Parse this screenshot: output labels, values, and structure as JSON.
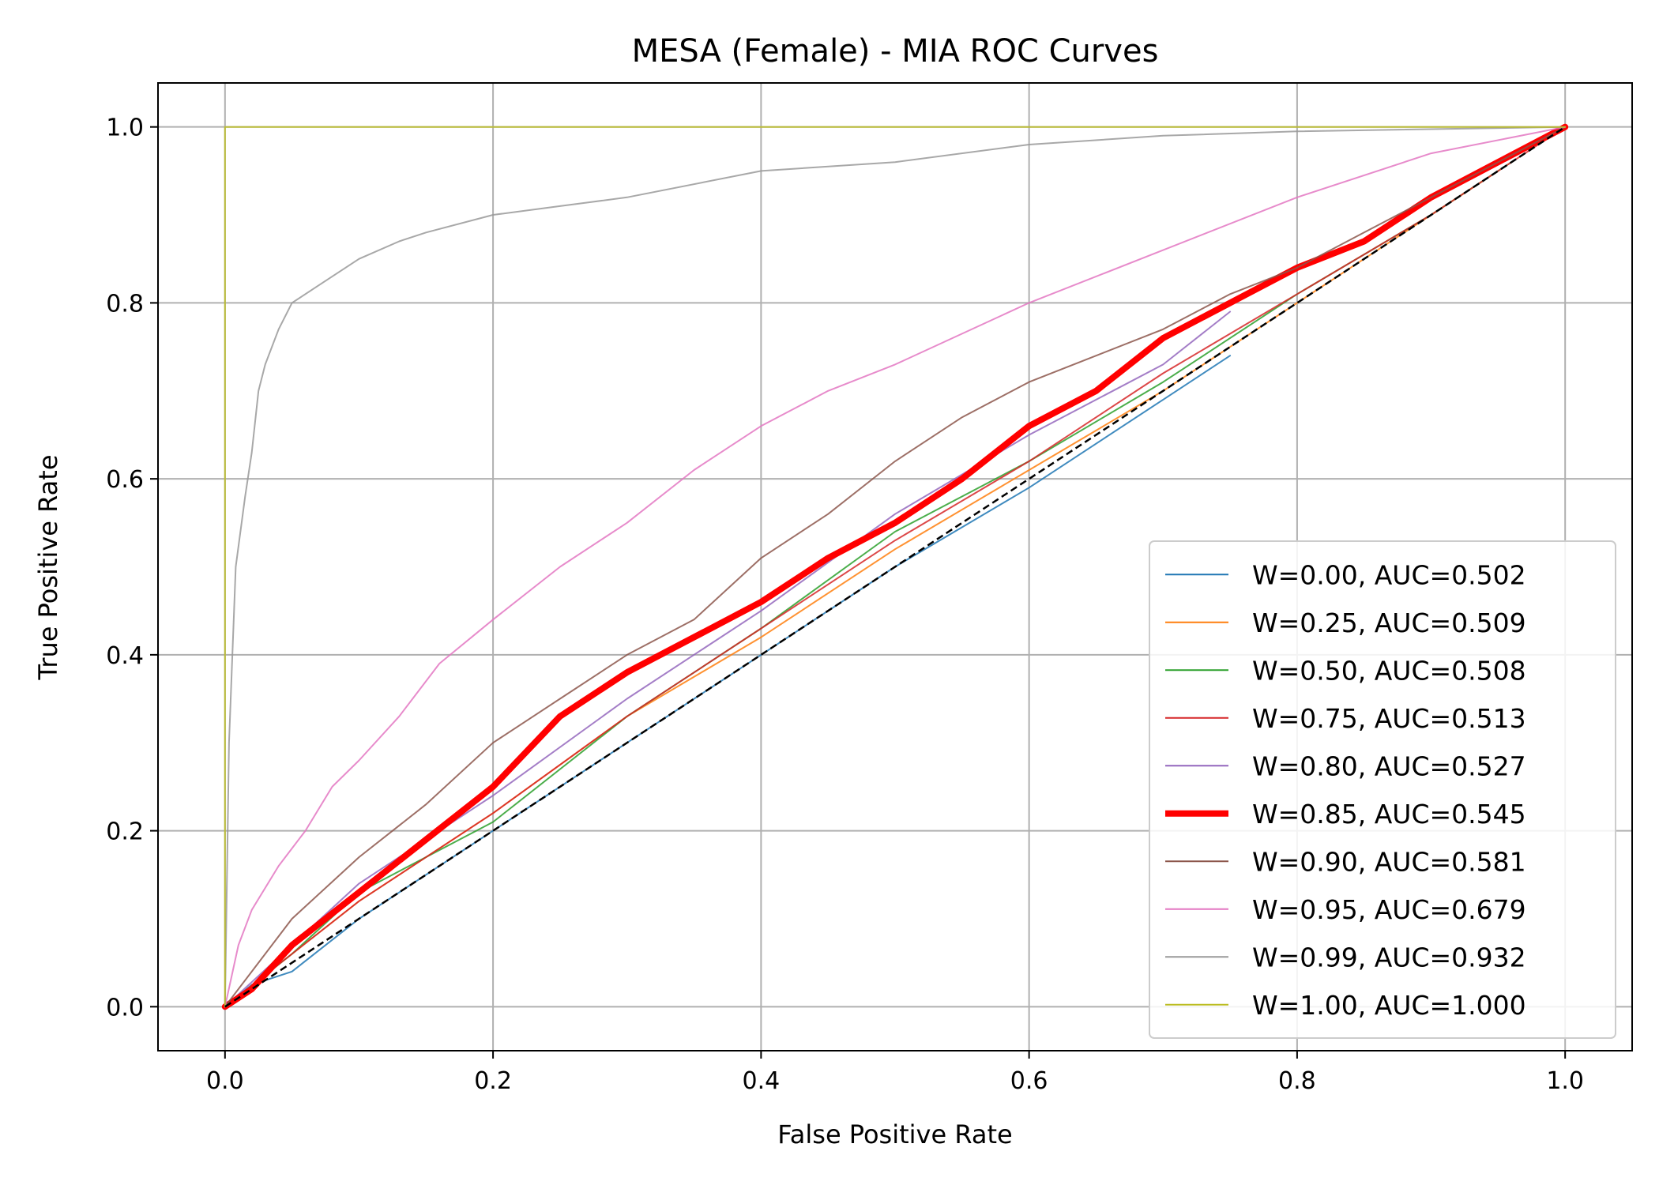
{
  "chart_data": {
    "type": "line",
    "title": "MESA (Female) - MIA ROC Curves",
    "xlabel": "False Positive Rate",
    "ylabel": "True Positive Rate",
    "xlim": [
      -0.05,
      1.05
    ],
    "ylim": [
      -0.05,
      1.05
    ],
    "xticks": [
      "0.0",
      "0.2",
      "0.4",
      "0.6",
      "0.8",
      "1.0"
    ],
    "yticks": [
      "0.0",
      "0.2",
      "0.4",
      "0.6",
      "0.8",
      "1.0"
    ],
    "grid": true,
    "legend_position": "lower-right",
    "series": [
      {
        "name": "W=0.00, AUC=0.502",
        "color": "#1f77b4",
        "highlight": false,
        "x": [
          0,
          0.02,
          0.05,
          0.1,
          0.2,
          0.3,
          0.4,
          0.5,
          0.6,
          0.7,
          0.75
        ],
        "y": [
          0,
          0.025,
          0.04,
          0.1,
          0.2,
          0.3,
          0.4,
          0.5,
          0.59,
          0.69,
          0.74
        ]
      },
      {
        "name": "W=0.25, AUC=0.509",
        "color": "#ff7f0e",
        "highlight": false,
        "x": [
          0,
          0.05,
          0.1,
          0.2,
          0.3,
          0.4,
          0.5,
          0.6,
          0.7,
          0.8,
          0.9,
          0.95
        ],
        "y": [
          0,
          0.06,
          0.12,
          0.22,
          0.33,
          0.42,
          0.52,
          0.61,
          0.7,
          0.8,
          0.9,
          0.95
        ]
      },
      {
        "name": "W=0.50, AUC=0.508",
        "color": "#2ca02c",
        "highlight": false,
        "x": [
          0,
          0.05,
          0.1,
          0.2,
          0.3,
          0.4,
          0.5,
          0.6,
          0.7,
          0.8,
          0.9,
          0.96
        ],
        "y": [
          0,
          0.06,
          0.13,
          0.21,
          0.33,
          0.43,
          0.54,
          0.62,
          0.71,
          0.81,
          0.9,
          0.96
        ]
      },
      {
        "name": "W=0.75, AUC=0.513",
        "color": "#d62728",
        "highlight": false,
        "x": [
          0,
          0.05,
          0.1,
          0.2,
          0.3,
          0.4,
          0.5,
          0.6,
          0.7,
          0.8,
          0.9,
          1.0
        ],
        "y": [
          0,
          0.06,
          0.12,
          0.22,
          0.33,
          0.43,
          0.53,
          0.62,
          0.72,
          0.81,
          0.9,
          1.0
        ]
      },
      {
        "name": "W=0.80, AUC=0.527",
        "color": "#9467bd",
        "highlight": false,
        "x": [
          0,
          0.05,
          0.1,
          0.2,
          0.3,
          0.4,
          0.5,
          0.6,
          0.7,
          0.75
        ],
        "y": [
          0,
          0.07,
          0.14,
          0.24,
          0.35,
          0.45,
          0.56,
          0.65,
          0.73,
          0.79
        ]
      },
      {
        "name": "W=0.85, AUC=0.545",
        "color": "#ff0000",
        "highlight": true,
        "x": [
          0,
          0.02,
          0.05,
          0.1,
          0.15,
          0.2,
          0.25,
          0.3,
          0.35,
          0.4,
          0.45,
          0.5,
          0.55,
          0.6,
          0.65,
          0.7,
          0.75,
          0.8,
          0.85,
          0.9,
          0.95,
          1.0
        ],
        "y": [
          0,
          0.02,
          0.07,
          0.13,
          0.19,
          0.25,
          0.33,
          0.38,
          0.42,
          0.46,
          0.51,
          0.55,
          0.6,
          0.66,
          0.7,
          0.76,
          0.8,
          0.84,
          0.87,
          0.92,
          0.96,
          1.0
        ]
      },
      {
        "name": "W=0.90, AUC=0.581",
        "color": "#8c564b",
        "highlight": false,
        "x": [
          0,
          0.05,
          0.1,
          0.15,
          0.2,
          0.25,
          0.3,
          0.35,
          0.4,
          0.45,
          0.5,
          0.55,
          0.6,
          0.65,
          0.7,
          0.75,
          0.8,
          0.85,
          0.9,
          0.95,
          1.0
        ],
        "y": [
          0,
          0.1,
          0.17,
          0.23,
          0.3,
          0.35,
          0.4,
          0.44,
          0.51,
          0.56,
          0.62,
          0.67,
          0.71,
          0.74,
          0.77,
          0.81,
          0.84,
          0.88,
          0.92,
          0.96,
          1.0
        ]
      },
      {
        "name": "W=0.95, AUC=0.679",
        "color": "#e377c2",
        "highlight": false,
        "x": [
          0,
          0.01,
          0.02,
          0.04,
          0.06,
          0.08,
          0.1,
          0.13,
          0.16,
          0.2,
          0.25,
          0.3,
          0.35,
          0.4,
          0.45,
          0.5,
          0.6,
          0.7,
          0.8,
          0.9,
          1.0
        ],
        "y": [
          0,
          0.07,
          0.11,
          0.16,
          0.2,
          0.25,
          0.28,
          0.33,
          0.39,
          0.44,
          0.5,
          0.55,
          0.61,
          0.66,
          0.7,
          0.73,
          0.8,
          0.86,
          0.92,
          0.97,
          1.0
        ]
      },
      {
        "name": "W=0.99, AUC=0.932",
        "color": "#999999",
        "highlight": false,
        "x": [
          0,
          0.003,
          0.008,
          0.015,
          0.02,
          0.025,
          0.03,
          0.04,
          0.05,
          0.07,
          0.1,
          0.13,
          0.15,
          0.2,
          0.25,
          0.3,
          0.4,
          0.5,
          0.6,
          0.7,
          0.8,
          1.0
        ],
        "y": [
          0,
          0.3,
          0.5,
          0.58,
          0.63,
          0.7,
          0.73,
          0.77,
          0.8,
          0.82,
          0.85,
          0.87,
          0.88,
          0.9,
          0.91,
          0.92,
          0.95,
          0.96,
          0.98,
          0.99,
          0.995,
          1.0
        ]
      },
      {
        "name": "W=1.00, AUC=1.000",
        "color": "#bcbd22",
        "highlight": false,
        "x": [
          0,
          0,
          1.0
        ],
        "y": [
          0,
          1.0,
          1.0
        ]
      }
    ],
    "reference_line": {
      "color": "#000000",
      "x": [
        0,
        1
      ],
      "y": [
        0,
        1
      ]
    }
  }
}
